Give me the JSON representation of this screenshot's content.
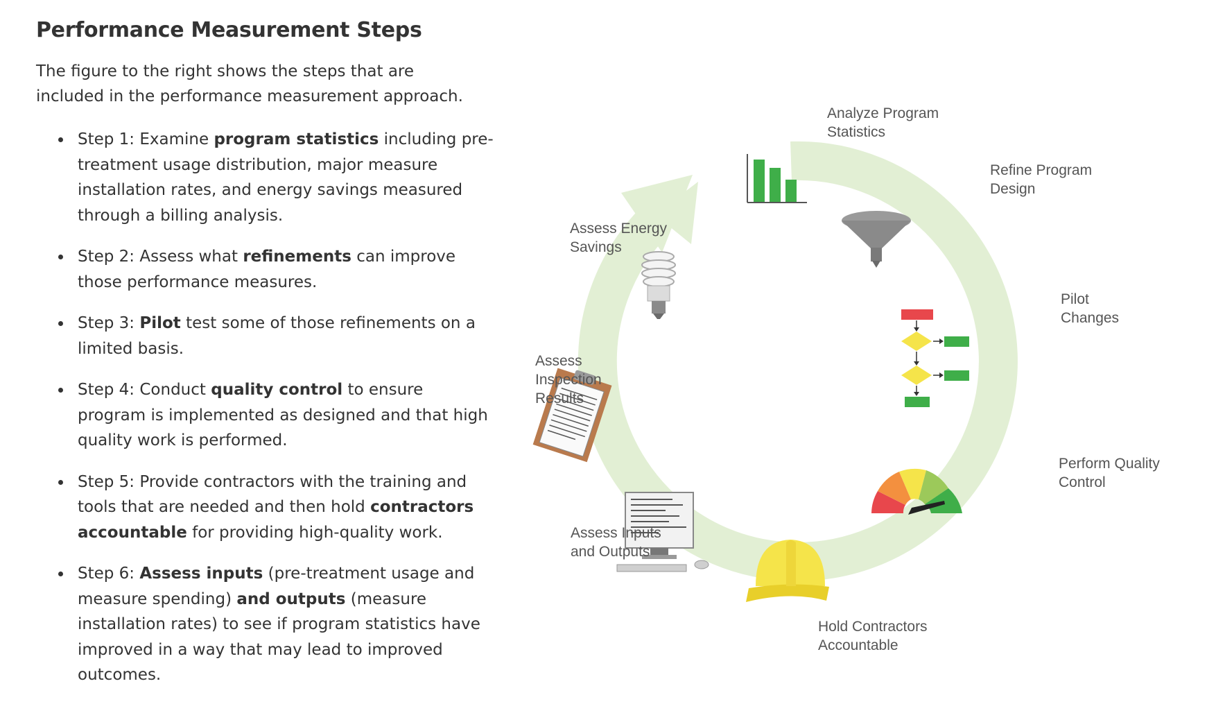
{
  "title": "Performance Measurement Steps",
  "intro": "The figure to the right shows the steps that are included in the performance measurement approach.",
  "steps": [
    {
      "parts": [
        {
          "t": "Step 1: Examine ",
          "b": false
        },
        {
          "t": "program statistics",
          "b": true
        },
        {
          "t": " including pre-treatment usage distribution, major measure installation rates, and energy savings measured through a billing analysis.",
          "b": false
        }
      ]
    },
    {
      "parts": [
        {
          "t": "Step 2: Assess what ",
          "b": false
        },
        {
          "t": "refinements",
          "b": true
        },
        {
          "t": " can improve those performance measures.",
          "b": false
        }
      ]
    },
    {
      "parts": [
        {
          "t": "Step 3: ",
          "b": false
        },
        {
          "t": "Pilot",
          "b": true
        },
        {
          "t": " test some of those refinements on a limited basis.",
          "b": false
        }
      ]
    },
    {
      "parts": [
        {
          "t": "Step 4: Conduct ",
          "b": false
        },
        {
          "t": "quality control",
          "b": true
        },
        {
          "t": " to ensure program is implemented as designed and that high quality work is performed.",
          "b": false
        }
      ]
    },
    {
      "parts": [
        {
          "t": "Step 5: Provide contractors with the training and tools that are needed and then hold ",
          "b": false
        },
        {
          "t": "contractors accountable",
          "b": true
        },
        {
          "t": " for providing high-quality work.",
          "b": false
        }
      ]
    },
    {
      "parts": [
        {
          "t": "Step 6: ",
          "b": false
        },
        {
          "t": "Assess inputs",
          "b": true
        },
        {
          "t": " (pre-treatment usage and measure spending) ",
          "b": false
        },
        {
          "t": "and outputs",
          "b": true
        },
        {
          "t": " (measure installation rates) to see if program statistics have improved in a way that may lead to improved outcomes.",
          "b": false
        }
      ]
    }
  ],
  "diagram": {
    "labels": {
      "analyze_line1": "Analyze Program",
      "analyze_line2": "Statistics",
      "refine_line1": "Refine Program",
      "refine_line2": "Design",
      "pilot_line1": "Pilot",
      "pilot_line2": "Changes",
      "quality_line1": "Perform Quality",
      "quality_line2": "Control",
      "hold_line1": "Hold Contractors",
      "hold_line2": "Accountable",
      "inputs_line1": "Assess Inputs",
      "inputs_line2": "and Outputs",
      "inspection_line1": "Assess",
      "inspection_line2": "Inspection",
      "inspection_line3": "Results",
      "energy_line1": "Assess Energy",
      "energy_line2": "Savings"
    },
    "icons": [
      "bar-chart-icon",
      "funnel-icon",
      "flowchart-icon",
      "gauge-icon",
      "hard-hat-icon",
      "computer-icon",
      "clipboard-icon",
      "lightbulb-icon"
    ],
    "colors": {
      "ring": "#e2efd4",
      "green": "#3fae49",
      "gray": "#8a8a8a",
      "red": "#e8474c",
      "yellow": "#f5e44a",
      "orange": "#f3903f"
    }
  }
}
